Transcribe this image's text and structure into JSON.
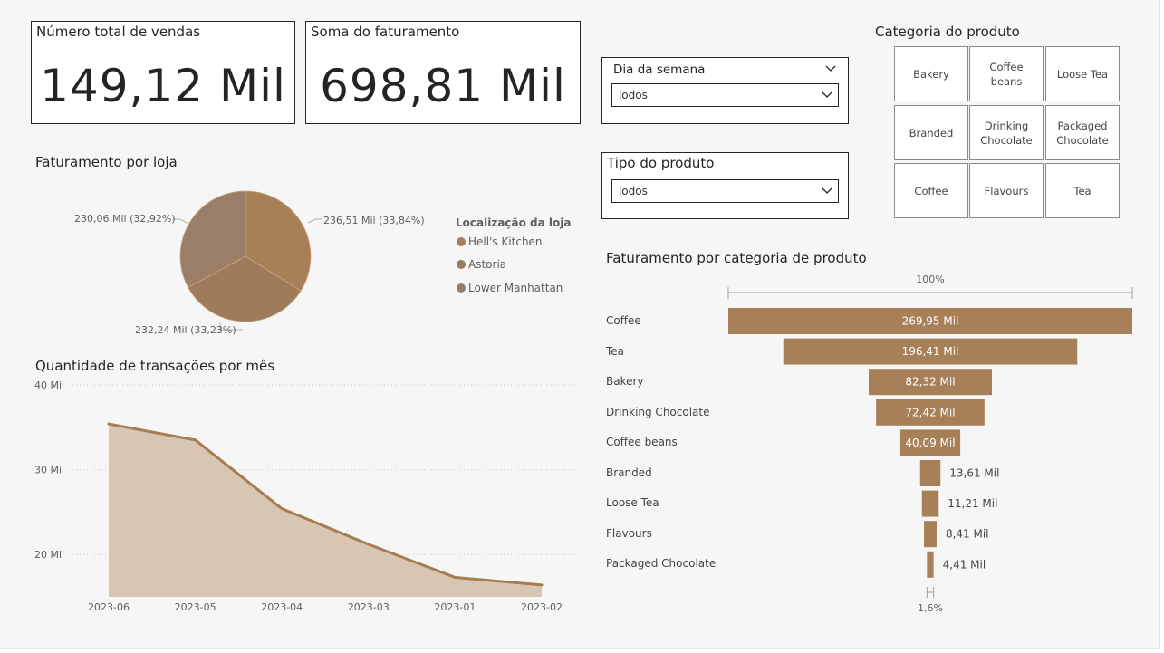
{
  "kpis": {
    "sales_title": "Número total de vendas",
    "sales_value": "149,12 Mil",
    "revenue_title": "Soma do faturamento",
    "revenue_value": "698,81 Mil"
  },
  "slicers": {
    "weekday": {
      "title": "Dia da semana",
      "value": "Todos"
    },
    "product_type": {
      "title": "Tipo do produto",
      "value": "Todos"
    }
  },
  "category_slicer": {
    "title": "Categoria do produto",
    "tiles": [
      "Bakery",
      "Coffee beans",
      "Loose Tea",
      "Branded",
      "Drinking Chocolate",
      "Packaged Chocolate",
      "Coffee",
      "Flavours",
      "Tea"
    ]
  },
  "colors": {
    "accent": "#a88058",
    "pie_1": "#a88058",
    "pie_2": "#9e7b5a",
    "pie_3": "#9a7e68",
    "area_fill": "#d8c6b3",
    "area_line": "#a67c52",
    "funnel": "#a88058"
  },
  "chart_data": [
    {
      "type": "pie",
      "title": "Faturamento por loja",
      "legend_title": "Localização da loja",
      "legend_placement": "right",
      "slices": [
        {
          "name": "Hell's Kitchen",
          "value": 236.51,
          "label": "236,51 Mil (33,84%)"
        },
        {
          "name": "Astoria",
          "value": 232.24,
          "label": "232,24 Mil (33,23%)"
        },
        {
          "name": "Lower Manhattan",
          "value": 230.06,
          "label": "230,06 Mil (32,92%)"
        }
      ]
    },
    {
      "type": "area",
      "title": "Quantidade de transações por mês",
      "categories": [
        "2023-06",
        "2023-05",
        "2023-04",
        "2023-03",
        "2023-01",
        "2023-02"
      ],
      "values": [
        35.4,
        33.5,
        25.4,
        21.2,
        17.3,
        16.4
      ],
      "ylim": [
        15,
        40
      ],
      "yticks": [
        20,
        30,
        40
      ],
      "ytick_labels": [
        "20 Mil",
        "30 Mil",
        "40 Mil"
      ],
      "grid": true
    },
    {
      "type": "bar",
      "subtype": "funnel",
      "title": "Faturamento por categoria de produto",
      "categories": [
        "Coffee",
        "Tea",
        "Bakery",
        "Drinking Chocolate",
        "Coffee beans",
        "Branded",
        "Loose Tea",
        "Flavours",
        "Packaged Chocolate"
      ],
      "values": [
        269.95,
        196.41,
        82.32,
        72.42,
        40.09,
        13.61,
        11.21,
        8.41,
        4.41
      ],
      "labels": [
        "269,95 Mil",
        "196,41 Mil",
        "82,32 Mil",
        "72,42 Mil",
        "40,09 Mil",
        "13,61 Mil",
        "11,21 Mil",
        "8,41 Mil",
        "4,41 Mil"
      ],
      "top_percent_label": "100%",
      "bottom_percent_label": "1,6%"
    }
  ]
}
